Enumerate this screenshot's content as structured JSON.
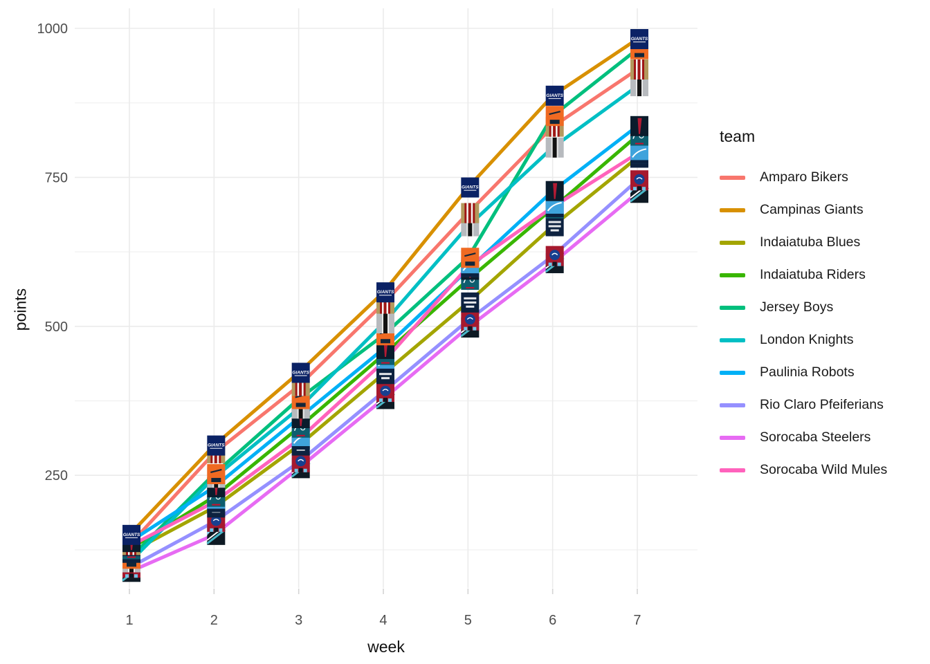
{
  "legend": {
    "title": "team"
  },
  "chart_data": {
    "type": "line",
    "x": [
      1,
      2,
      3,
      4,
      5,
      6,
      7
    ],
    "xlabel": "week",
    "ylabel": "points",
    "x_ticks": [
      1,
      2,
      3,
      4,
      5,
      6,
      7
    ],
    "y_ticks": [
      250,
      500,
      750,
      1000
    ],
    "y_minor_ticks": [
      125,
      375,
      625,
      875
    ],
    "xlim": [
      0.35,
      7.7
    ],
    "ylim": [
      50,
      1035
    ],
    "grid": true,
    "legend_position": "right",
    "point_marker": "team-logo-image",
    "series": [
      {
        "name": "Amparo Bikers",
        "color": "#F8766D",
        "logo": "gold-red-stripes-jersey",
        "values": [
          133,
          287,
          400,
          538,
          690,
          835,
          931
        ]
      },
      {
        "name": "Campinas Giants",
        "color": "#D89000",
        "logo": "navy-giants-wordmark",
        "values": [
          150,
          300,
          422,
          557,
          733,
          887,
          982
        ]
      },
      {
        "name": "Indaiatuba Blues",
        "color": "#A3A500",
        "logo": "navy-text-rows",
        "values": [
          120,
          196,
          300,
          420,
          540,
          668,
          783
        ]
      },
      {
        "name": "Indaiatuba Riders",
        "color": "#39B600",
        "logo": "teal-knight",
        "values": [
          126,
          214,
          330,
          452,
          578,
          698,
          820
        ]
      },
      {
        "name": "Jersey Boys",
        "color": "#00BF7D",
        "logo": "orange-navy",
        "values": [
          110,
          252,
          378,
          485,
          615,
          853,
          965
        ]
      },
      {
        "name": "London Knights",
        "color": "#00BFC4",
        "logo": "silver-black-stripe",
        "values": [
          104,
          246,
          362,
          505,
          668,
          800,
          903
        ]
      },
      {
        "name": "Paulinia Robots",
        "color": "#00B0F6",
        "logo": "navy-red-wedge",
        "values": [
          138,
          230,
          346,
          462,
          595,
          727,
          836
        ]
      },
      {
        "name": "Rio Claro Pfeiferians",
        "color": "#9590FF",
        "logo": "crimson-helmet",
        "values": [
          95,
          172,
          272,
          390,
          510,
          618,
          745
        ]
      },
      {
        "name": "Sorocaba Steelers",
        "color": "#E76BF3",
        "logo": "black-teal-diagonal",
        "values": [
          88,
          150,
          262,
          378,
          498,
          606,
          724
        ]
      },
      {
        "name": "Sorocaba Wild Mules",
        "color": "#FF62BC",
        "logo": "blue-swoosh",
        "values": [
          131,
          205,
          310,
          440,
          600,
          700,
          790
        ]
      }
    ],
    "style": {
      "panel_background": "#ffffff",
      "grid_major_color": "#ebebeb",
      "grid_minor_color": "#f2f2f2",
      "tick_color": "#d4d4d4",
      "tick_label_color": "#4d4d4d",
      "axis_title_color": "#111111"
    }
  }
}
